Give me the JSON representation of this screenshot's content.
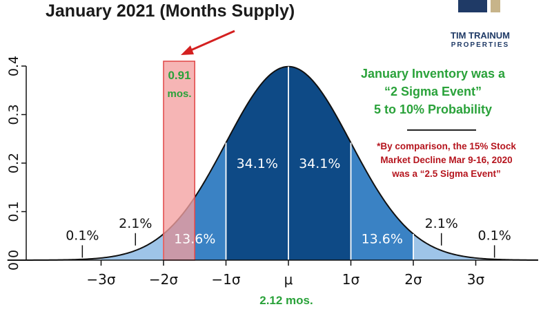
{
  "header": {
    "title": "January 2021 (Months Supply)"
  },
  "logo": {
    "name": "TIM TRAINUM",
    "sub": "PROPERTIES",
    "colors": [
      "#1f3a66",
      "#c7b48a"
    ]
  },
  "annotations": {
    "green_lines": [
      "January Inventory was a",
      "“2 Sigma Event”",
      "5 to 10% Probability"
    ],
    "red_lines": [
      "*By comparison, the 15% Stock",
      "Market Decline Mar 9-16, 2020",
      "was a “2.5 Sigma Event”"
    ],
    "bar_value": "0.91",
    "bar_unit": "mos.",
    "mean_value": "2.12 mos."
  },
  "chart_data": {
    "type": "area",
    "title": "January 2021 (Months Supply)",
    "distribution": "standard normal",
    "xlim": [
      -4.5,
      4.0
    ],
    "ylim": [
      0,
      0.4
    ],
    "y_ticks": [
      "0.0",
      "0.1",
      "0.2",
      "0.3",
      "0.4"
    ],
    "x_ticks": [
      {
        "x": -3,
        "label": "−3σ"
      },
      {
        "x": -2,
        "label": "−2σ"
      },
      {
        "x": -1,
        "label": "−1σ"
      },
      {
        "x": 0,
        "label": "μ"
      },
      {
        "x": 1,
        "label": "1σ"
      },
      {
        "x": 2,
        "label": "2σ"
      },
      {
        "x": 3,
        "label": "3σ"
      }
    ],
    "bands": [
      {
        "from": -4.5,
        "to": -3,
        "color": "#cfe1f3"
      },
      {
        "from": -3,
        "to": -2,
        "color": "#9ec4e8"
      },
      {
        "from": -2,
        "to": -1,
        "color": "#3a82c4"
      },
      {
        "from": -1,
        "to": 0,
        "color": "#0e4a86"
      },
      {
        "from": 0,
        "to": 1,
        "color": "#0e4a86"
      },
      {
        "from": 1,
        "to": 2,
        "color": "#3a82c4"
      },
      {
        "from": 2,
        "to": 3,
        "color": "#9ec4e8"
      },
      {
        "from": 3,
        "to": 4.0,
        "color": "#cfe1f3"
      }
    ],
    "percent_labels": [
      {
        "x": -0.5,
        "y": 0.19,
        "text": "34.1%",
        "color": "#ffffff"
      },
      {
        "x": 0.5,
        "y": 0.19,
        "text": "34.1%",
        "color": "#ffffff"
      },
      {
        "x": -1.5,
        "y": 0.035,
        "text": "13.6%",
        "color": "#ffffff"
      },
      {
        "x": 1.5,
        "y": 0.035,
        "text": "13.6%",
        "color": "#ffffff"
      },
      {
        "x": -2.45,
        "y": 0.067,
        "text": "2.1%",
        "color": "#111111",
        "tick_x": -2.45
      },
      {
        "x": 2.45,
        "y": 0.067,
        "text": "2.1%",
        "color": "#111111",
        "tick_x": 2.45
      },
      {
        "x": -3.3,
        "y": 0.042,
        "text": "0.1%",
        "color": "#111111",
        "tick_x": -3.3
      },
      {
        "x": 3.3,
        "y": 0.042,
        "text": "0.1%",
        "color": "#111111",
        "tick_x": 3.3
      }
    ],
    "highlight_bar": {
      "from": -2.0,
      "to": -1.5,
      "height": 0.41,
      "value": 0.91,
      "unit": "mos.",
      "fill": "#f4a0a0",
      "stroke": "#e04545"
    },
    "mean_value": 2.12,
    "arrow_color": "#d42020"
  }
}
